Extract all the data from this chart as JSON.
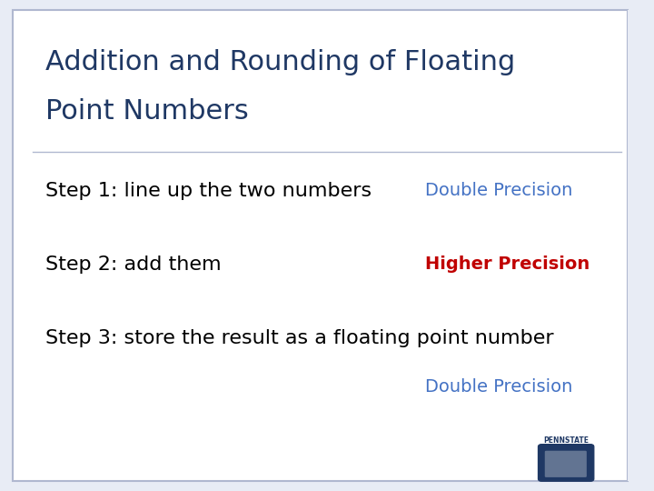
{
  "bg_color": "#e8ecf5",
  "slide_bg": "#ffffff",
  "title_line1": "Addition and Rounding of Floating",
  "title_line2": "Point Numbers",
  "title_color": "#1f3864",
  "title_fontsize": 22,
  "step1_left": "Step 1: line up the two numbers",
  "step1_right": "Double Precision",
  "step1_right_color": "#4472c4",
  "step2_left": "Step 2: add them",
  "step2_right": "Higher Precision",
  "step2_right_color": "#c00000",
  "step3_left": "Step 3: store the result as a floating point number",
  "step3_right": "Double Precision",
  "step3_right_color": "#4472c4",
  "step_fontsize": 16,
  "step_color": "#000000",
  "border_color": "#b0b8d0",
  "pennstate_color": "#1f3864",
  "pennstate_text": "PENNSTATE"
}
